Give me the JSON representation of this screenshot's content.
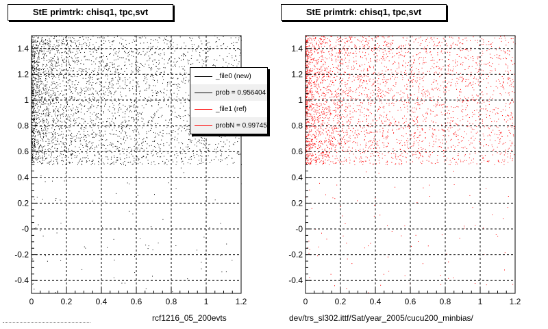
{
  "chart_data": [
    {
      "type": "scatter",
      "title": "StE primtrk: chisq1, tpc,svt",
      "xlabel": "rcf1216_05_200evts",
      "ylabel": "",
      "xlim": [
        0,
        1.2
      ],
      "ylim": [
        -0.5,
        1.5
      ],
      "x_ticks": [
        0,
        0.2,
        0.4,
        0.6,
        0.8,
        1,
        1.2
      ],
      "x_tick_labels": [
        "0",
        "0.2",
        "0.4",
        "0.6",
        "0.8",
        "1",
        "1.2"
      ],
      "y_ticks": [
        -0.4,
        -0.2,
        0,
        0.2,
        0.4,
        0.6,
        0.8,
        1,
        1.2,
        1.4
      ],
      "y_tick_labels": [
        "-0.4",
        "-0.2",
        "-0",
        "0.2",
        "0.4",
        "0.6",
        "0.8",
        "1",
        "1.2",
        "1.4"
      ],
      "grid": true,
      "point_color": "#000000",
      "density": {
        "dense_region": {
          "x": [
            0,
            1.2
          ],
          "y": [
            0.5,
            1.5
          ],
          "concentrated_near_x": 0
        },
        "sparse_region": {
          "x": [
            0,
            1.2
          ],
          "y": [
            -0.5,
            0.5
          ]
        }
      },
      "legend": {
        "placement": "top-right",
        "entries": [
          {
            "label": "_file0 (new)",
            "color": "#000000"
          },
          {
            "label": "prob = 0.956404",
            "color": "#000000"
          },
          {
            "label": "_file1 (ref)",
            "color": "#ff0000"
          },
          {
            "label": "probN = 0.997451",
            "color": "#ff0000"
          }
        ]
      }
    },
    {
      "type": "scatter",
      "title": "StE primtrk: chisq1, tpc,svt",
      "xlabel": "dev/trs_sl302.ittf/Sat/year_2005/cucu200_minbias/",
      "ylabel": "",
      "xlim": [
        0,
        1.2
      ],
      "ylim": [
        -0.5,
        1.5
      ],
      "x_ticks": [
        0,
        0.2,
        0.4,
        0.6,
        0.8,
        1,
        1.2
      ],
      "x_tick_labels": [
        "0",
        "0.2",
        "0.4",
        "0.6",
        "0.8",
        "1",
        "1.2"
      ],
      "y_ticks": [
        -0.4,
        -0.2,
        0,
        0.2,
        0.4,
        0.6,
        0.8,
        1,
        1.2,
        1.4
      ],
      "y_tick_labels": [
        "-0.4",
        "-0.2",
        "-0",
        "0.2",
        "0.4",
        "0.6",
        "0.8",
        "1",
        "1.2",
        "1.4"
      ],
      "grid": true,
      "point_color": "#ff0000",
      "density": {
        "dense_region": {
          "x": [
            0,
            1.2
          ],
          "y": [
            0.5,
            1.5
          ],
          "concentrated_near_x": 0
        },
        "sparse_region": {
          "x": [
            0,
            1.2
          ],
          "y": [
            -0.5,
            0.5
          ]
        }
      }
    }
  ]
}
